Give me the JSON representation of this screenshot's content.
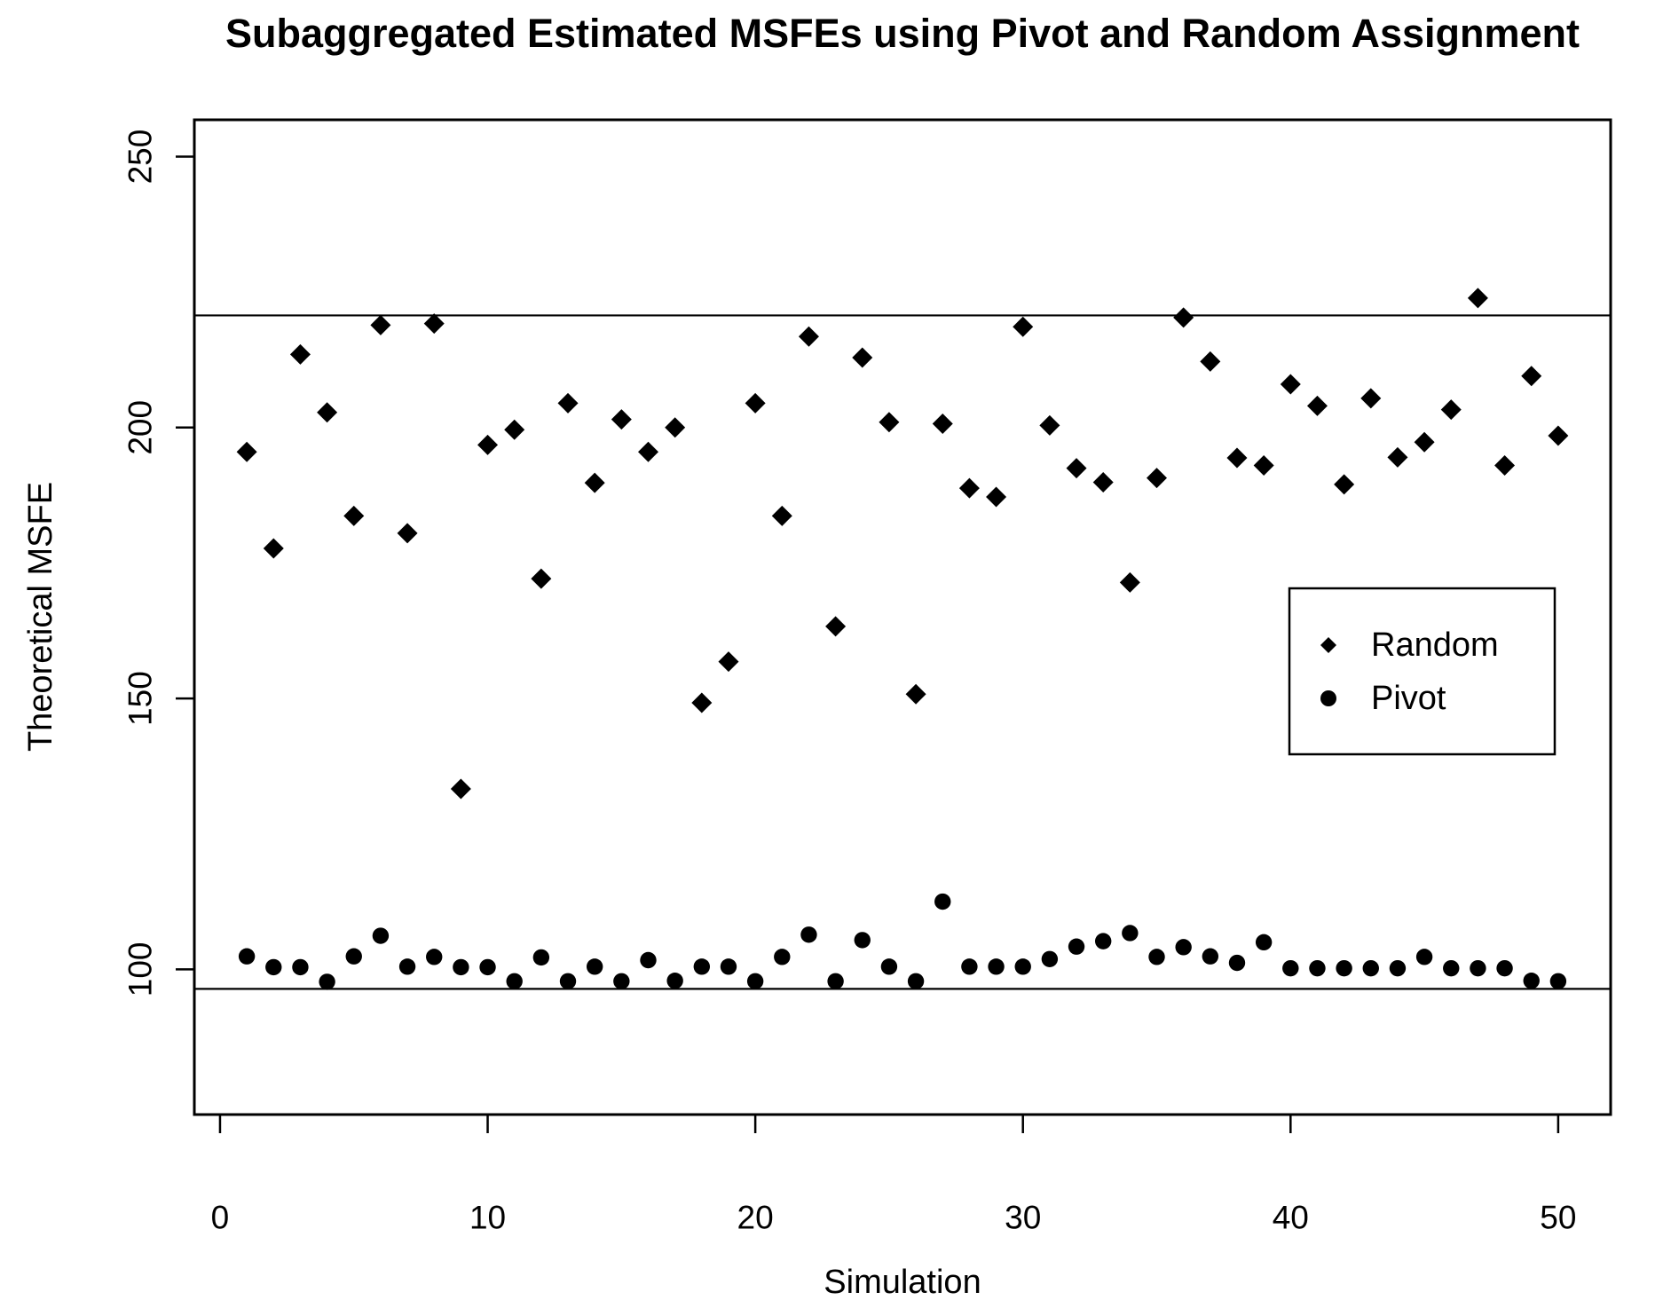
{
  "chart_data": {
    "type": "scatter",
    "title": "Subaggregated Estimated MSFEs using Pivot and Random Assignment",
    "xlabel": "Simulation",
    "ylabel": "Theoretical MSFE",
    "x_ticks": [
      0,
      10,
      20,
      30,
      40,
      50
    ],
    "x_tick_labels": [
      "0",
      "10",
      "20",
      "30",
      "40",
      "50"
    ],
    "y_ticks": [
      100,
      150,
      200,
      250
    ],
    "y_tick_labels": [
      "100",
      "150",
      "200",
      "250"
    ],
    "xlim": [
      -0.96,
      51.96
    ],
    "ylim": [
      73.2,
      256.8
    ],
    "grid": false,
    "legend_position": "inside-right",
    "x": [
      1,
      2,
      3,
      4,
      5,
      6,
      7,
      8,
      9,
      10,
      11,
      12,
      13,
      14,
      15,
      16,
      17,
      18,
      19,
      20,
      21,
      22,
      23,
      24,
      25,
      26,
      27,
      28,
      29,
      30,
      31,
      32,
      33,
      34,
      35,
      36,
      37,
      38,
      39,
      40,
      41,
      42,
      43,
      44,
      45,
      46,
      47,
      48,
      49,
      50
    ],
    "series": [
      {
        "name": "Random",
        "marker": "diamond",
        "color": "#000000",
        "values": [
          195.5,
          177.7,
          213.5,
          202.8,
          183.7,
          218.9,
          180.5,
          219.2,
          133.3,
          196.8,
          199.6,
          172.1,
          204.5,
          189.8,
          201.5,
          195.5,
          200.0,
          149.2,
          156.8,
          204.5,
          183.7,
          216.8,
          163.3,
          212.9,
          201.0,
          150.8,
          200.7,
          188.8,
          187.2,
          218.6,
          200.4,
          192.5,
          189.9,
          171.4,
          190.7,
          220.3,
          212.2,
          194.4,
          193.0,
          208.0,
          204.0,
          189.5,
          205.4,
          194.5,
          197.3,
          203.3,
          223.9,
          193.0,
          209.5,
          198.5
        ]
      },
      {
        "name": "Pivot",
        "marker": "circle",
        "color": "#000000",
        "values": [
          102.4,
          100.4,
          100.4,
          97.7,
          102.4,
          106.2,
          100.5,
          102.3,
          100.4,
          100.4,
          97.8,
          102.2,
          97.8,
          100.5,
          97.8,
          101.7,
          97.9,
          100.5,
          100.5,
          97.8,
          102.3,
          106.4,
          97.8,
          105.4,
          100.5,
          97.8,
          112.5,
          100.5,
          100.5,
          100.5,
          101.9,
          104.2,
          105.2,
          106.7,
          102.3,
          104.1,
          102.4,
          101.2,
          105.0,
          100.2,
          100.2,
          100.2,
          100.2,
          100.2,
          102.3,
          100.2,
          100.2,
          100.2,
          97.9,
          97.8
        ]
      }
    ],
    "hlines": [
      220.7,
      96.4
    ]
  },
  "colors": {
    "foreground": "#000000",
    "background": "#ffffff"
  }
}
